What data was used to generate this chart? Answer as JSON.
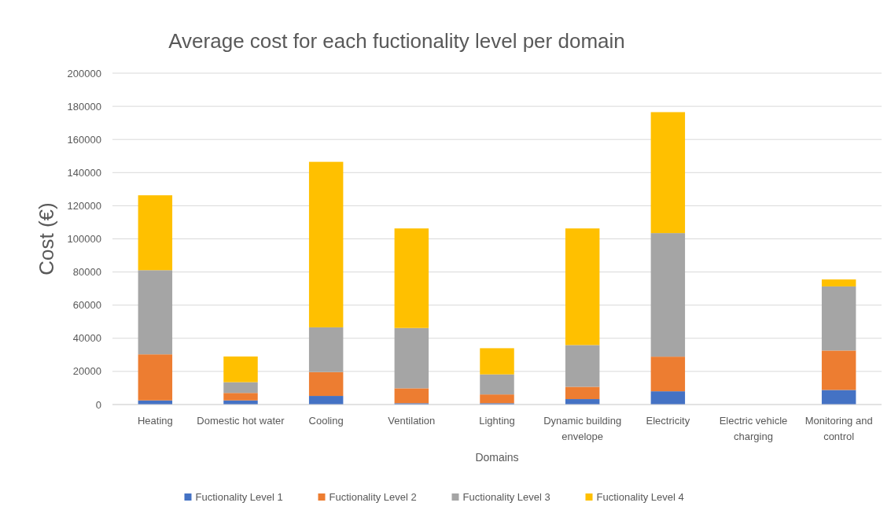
{
  "chart_data": {
    "type": "bar",
    "stacked": true,
    "title": "Average cost for each fuctionality level per domain",
    "xlabel": "Domains",
    "ylabel": "Cost (€)",
    "categories": [
      "Heating",
      "Domestic hot water",
      "Cooling",
      "Ventilation",
      "Lighting",
      "Dynamic building envelope",
      "Electricity",
      "Electric vehicle charging",
      "Monitoring and control"
    ],
    "series": [
      {
        "name": "Fuctionality Level 1",
        "color": "#4472c4",
        "values": [
          2500,
          2500,
          5200,
          800,
          800,
          3300,
          8000,
          0,
          8800
        ]
      },
      {
        "name": "Fuctionality Level 2",
        "color": "#ed7d31",
        "values": [
          27800,
          4500,
          14400,
          9000,
          5300,
          7400,
          20900,
          0,
          23800
        ]
      },
      {
        "name": "Fuctionality Level 3",
        "color": "#a5a5a5",
        "values": [
          50800,
          6500,
          27000,
          36400,
          12100,
          25200,
          74600,
          0,
          38700
        ]
      },
      {
        "name": "Fuctionality Level 4",
        "color": "#ffc000",
        "values": [
          45200,
          15500,
          99900,
          60100,
          15800,
          70400,
          73000,
          0,
          4200
        ]
      }
    ],
    "ylim": [
      0,
      200000
    ],
    "yticks": [
      0,
      20000,
      40000,
      60000,
      80000,
      100000,
      120000,
      140000,
      160000,
      180000,
      200000
    ],
    "grid": "y",
    "legend": "bottom"
  }
}
